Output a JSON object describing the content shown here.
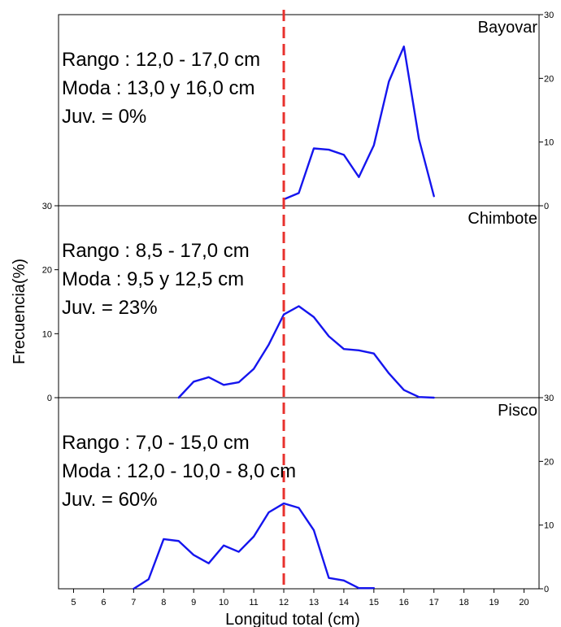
{
  "chart_data": {
    "type": "line",
    "xlabel": "Longitud total (cm)",
    "ylabel": "Frecuencia(%)",
    "xlim": [
      4.5,
      20.5
    ],
    "x_ticks": [
      5,
      6,
      7,
      8,
      9,
      10,
      11,
      12,
      13,
      14,
      15,
      16,
      17,
      18,
      19,
      20
    ],
    "reference_line": {
      "x": 12,
      "style": "dashed",
      "color": "#e8322e"
    },
    "line_color": "#1515ee",
    "panels": [
      {
        "name": "Bayovar",
        "ylim": [
          0,
          30
        ],
        "y_ticks": [
          0,
          10,
          20,
          30
        ],
        "y_axis_side": "right",
        "annotations": [
          "Rango : 12,0 - 17,0 cm",
          "Moda : 13,0 y 16,0 cm",
          "Juv. = 0%"
        ],
        "x": [
          12,
          12.5,
          13,
          13.5,
          14,
          14.5,
          15,
          15.5,
          16,
          16.5,
          17
        ],
        "y": [
          1,
          2,
          9,
          8.8,
          8,
          4.5,
          9.5,
          19.5,
          25,
          10.5,
          1.5
        ]
      },
      {
        "name": "Chimbote",
        "ylim": [
          0,
          30
        ],
        "y_ticks": [
          0,
          10,
          20,
          30
        ],
        "y_axis_side": "left",
        "annotations": [
          "Rango : 8,5 - 17,0 cm",
          "Moda :  9,5 y 12,5 cm",
          "Juv. = 23%"
        ],
        "x": [
          8.5,
          9,
          9.5,
          10,
          10.5,
          11,
          11.5,
          12,
          12.5,
          13,
          13.5,
          14,
          14.5,
          15,
          15.5,
          16,
          16.5,
          17
        ],
        "y": [
          0,
          2.5,
          3.2,
          2,
          2.4,
          4.5,
          8.3,
          13,
          14.3,
          12.6,
          9.6,
          7.6,
          7.4,
          6.9,
          3.8,
          1.2,
          0.1,
          0
        ]
      },
      {
        "name": "Pisco",
        "ylim": [
          0,
          30
        ],
        "y_ticks": [
          0,
          10,
          20,
          30
        ],
        "y_axis_side": "right",
        "annotations": [
          "Rango : 7,0 - 15,0 cm",
          "Moda : 12,0 - 10,0 -  8,0 cm",
          "Juv. = 60%"
        ],
        "x": [
          7,
          7.5,
          8,
          8.5,
          9,
          9.5,
          10,
          10.5,
          11,
          11.5,
          12,
          12.5,
          13,
          13.5,
          14,
          14.5,
          15
        ],
        "y": [
          0,
          1.5,
          7.8,
          7.5,
          5.3,
          4,
          6.8,
          5.8,
          8.2,
          12,
          13.4,
          12.7,
          9.2,
          1.7,
          1.3,
          0.1,
          0.1
        ]
      }
    ]
  }
}
